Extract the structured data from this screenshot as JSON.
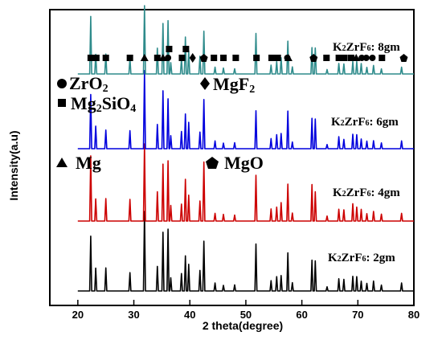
{
  "chart_data": {
    "type": "line",
    "xlabel": "2 theta(degree)",
    "ylabel": "Intensity(a.u)",
    "xlim": [
      15,
      80
    ],
    "xticks": [
      "20",
      "30",
      "40",
      "50",
      "60",
      "70",
      "80"
    ],
    "grid": false,
    "legend": [
      {
        "name": "ZrO2",
        "marker": "circle-icon"
      },
      {
        "name": "MgF2",
        "marker": "diamond-icon"
      },
      {
        "name": "Mg2SiO4",
        "marker": "square-icon"
      },
      {
        "name": "Mg",
        "marker": "triangle-icon"
      },
      {
        "name": "MgO",
        "marker": "pentagon-icon"
      }
    ],
    "peaks": [
      {
        "x": 22.3,
        "h": 0.78
      },
      {
        "x": 23.2,
        "h": 0.3
      },
      {
        "x": 25.0,
        "h": 0.28
      },
      {
        "x": 29.3,
        "h": 0.25
      },
      {
        "x": 31.9,
        "h": 1.0
      },
      {
        "x": 34.2,
        "h": 0.35
      },
      {
        "x": 35.2,
        "h": 0.77
      },
      {
        "x": 36.1,
        "h": 0.75
      },
      {
        "x": 36.6,
        "h": 0.18
      },
      {
        "x": 38.5,
        "h": 0.22
      },
      {
        "x": 39.2,
        "h": 0.5
      },
      {
        "x": 39.8,
        "h": 0.35
      },
      {
        "x": 41.8,
        "h": 0.25
      },
      {
        "x": 42.5,
        "h": 0.68
      },
      {
        "x": 44.5,
        "h": 0.1
      },
      {
        "x": 46.0,
        "h": 0.08
      },
      {
        "x": 48.0,
        "h": 0.08
      },
      {
        "x": 51.8,
        "h": 0.57
      },
      {
        "x": 54.5,
        "h": 0.14
      },
      {
        "x": 55.5,
        "h": 0.18
      },
      {
        "x": 56.3,
        "h": 0.22
      },
      {
        "x": 57.5,
        "h": 0.5
      },
      {
        "x": 58.3,
        "h": 0.1
      },
      {
        "x": 61.8,
        "h": 0.42
      },
      {
        "x": 62.4,
        "h": 0.38
      },
      {
        "x": 64.5,
        "h": 0.06
      },
      {
        "x": 66.6,
        "h": 0.16
      },
      {
        "x": 67.5,
        "h": 0.14
      },
      {
        "x": 69.1,
        "h": 0.2
      },
      {
        "x": 69.8,
        "h": 0.18
      },
      {
        "x": 70.6,
        "h": 0.14
      },
      {
        "x": 71.6,
        "h": 0.1
      },
      {
        "x": 72.8,
        "h": 0.12
      },
      {
        "x": 74.2,
        "h": 0.08
      },
      {
        "x": 77.8,
        "h": 0.1
      }
    ],
    "series": [
      {
        "name": "K2ZrF6: 2gm",
        "base": "K",
        "sub1": "2",
        "mid": "ZrF",
        "sub2": "6",
        "rest": ": 2gm",
        "color": "#000000",
        "scale": 95
      },
      {
        "name": "K2ZrF6: 4gm",
        "base": "K",
        "sub1": "2",
        "mid": "ZrF",
        "sub2": "6",
        "rest": ": 4gm",
        "color": "#cc0000",
        "scale": 100
      },
      {
        "name": "K2ZrF6: 6gm",
        "base": "K",
        "sub1": "2",
        "mid": "ZrF",
        "sub2": "6",
        "rest": ": 6gm",
        "color": "#0000dd",
        "scale": 90
      },
      {
        "name": "K2ZrF6: 8gm",
        "base": "K",
        "sub1": "2",
        "mid": "ZrF",
        "sub2": "6",
        "rest": ": 8gm",
        "color": "#2e8b8b",
        "scale": 85
      }
    ],
    "phase_markers": [
      {
        "x": 22.3,
        "type": "square"
      },
      {
        "x": 23.3,
        "type": "square"
      },
      {
        "x": 25.0,
        "type": "square"
      },
      {
        "x": 29.3,
        "type": "square"
      },
      {
        "x": 31.9,
        "type": "triangle"
      },
      {
        "x": 34.2,
        "type": "square"
      },
      {
        "x": 35.2,
        "type": "triangle"
      },
      {
        "x": 36.1,
        "type": "circle"
      },
      {
        "x": 36.3,
        "type": "square"
      },
      {
        "x": 38.6,
        "type": "square"
      },
      {
        "x": 39.3,
        "type": "square"
      },
      {
        "x": 40.5,
        "type": "diamond"
      },
      {
        "x": 42.5,
        "type": "pentagon"
      },
      {
        "x": 44.3,
        "type": "square"
      },
      {
        "x": 46.0,
        "type": "square"
      },
      {
        "x": 48.2,
        "type": "square"
      },
      {
        "x": 51.9,
        "type": "square"
      },
      {
        "x": 54.6,
        "type": "square"
      },
      {
        "x": 55.7,
        "type": "square"
      },
      {
        "x": 57.4,
        "type": "circle"
      },
      {
        "x": 57.6,
        "type": "triangle"
      },
      {
        "x": 62.1,
        "type": "pentagon"
      },
      {
        "x": 64.4,
        "type": "square"
      },
      {
        "x": 66.6,
        "type": "square"
      },
      {
        "x": 67.6,
        "type": "square"
      },
      {
        "x": 68.8,
        "type": "square"
      },
      {
        "x": 69.7,
        "type": "triangle"
      },
      {
        "x": 70.7,
        "type": "circle"
      },
      {
        "x": 71.5,
        "type": "circle"
      },
      {
        "x": 72.6,
        "type": "circle"
      },
      {
        "x": 74.3,
        "type": "square"
      },
      {
        "x": 78.2,
        "type": "pentagon"
      }
    ]
  }
}
